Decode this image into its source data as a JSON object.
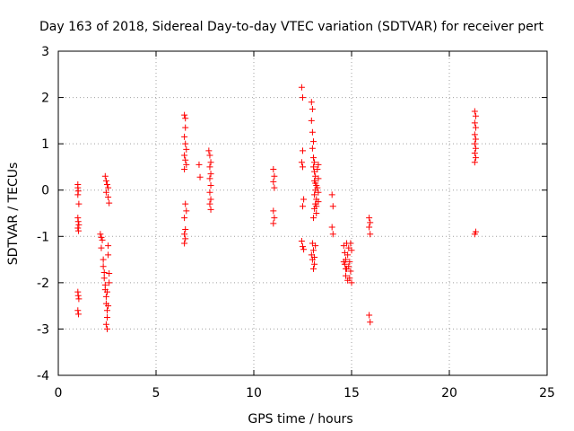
{
  "chart_data": {
    "type": "scatter",
    "title": "Day 163 of 2018, Sidereal Day-to-day VTEC variation (SDTVAR) for receiver pert",
    "xlabel": "GPS time / hours",
    "ylabel": "SDTVAR / TECUs",
    "xlim": [
      0,
      25
    ],
    "ylim": [
      -4,
      3
    ],
    "xticks": [
      0,
      5,
      10,
      15,
      20,
      25
    ],
    "yticks": [
      -4,
      -3,
      -2,
      -1,
      0,
      1,
      2,
      3
    ],
    "xtick_labels": [
      "0",
      "5",
      "10",
      "15",
      "20",
      "25"
    ],
    "ytick_labels": [
      "-4",
      "-3",
      "-2",
      "-1",
      "0",
      "1",
      "2",
      "3"
    ],
    "grid": true,
    "marker": "+",
    "color": "#ff0000",
    "series": [
      {
        "name": "SDTVAR",
        "points": [
          [
            1.0,
            0.12
          ],
          [
            1.0,
            0.05
          ],
          [
            1.02,
            -0.02
          ],
          [
            1.0,
            -0.1
          ],
          [
            1.05,
            -0.3
          ],
          [
            1.0,
            -0.6
          ],
          [
            1.02,
            -0.68
          ],
          [
            1.05,
            -0.75
          ],
          [
            1.0,
            -0.82
          ],
          [
            1.03,
            -0.88
          ],
          [
            1.0,
            -2.2
          ],
          [
            1.02,
            -2.28
          ],
          [
            1.05,
            -2.35
          ],
          [
            1.0,
            -2.6
          ],
          [
            1.03,
            -2.68
          ],
          [
            2.15,
            -0.95
          ],
          [
            2.2,
            -1.02
          ],
          [
            2.25,
            -1.08
          ],
          [
            2.2,
            -1.25
          ],
          [
            2.3,
            -1.5
          ],
          [
            2.3,
            -1.65
          ],
          [
            2.35,
            -1.78
          ],
          [
            2.35,
            -1.9
          ],
          [
            2.4,
            -2.05
          ],
          [
            2.4,
            -2.15
          ],
          [
            2.45,
            -2.3
          ],
          [
            2.45,
            -2.45
          ],
          [
            2.5,
            -2.6
          ],
          [
            2.5,
            -2.75
          ],
          [
            2.45,
            -2.9
          ],
          [
            2.5,
            -3.0
          ],
          [
            2.55,
            -1.4
          ],
          [
            2.55,
            -1.2
          ],
          [
            2.5,
            -2.2
          ],
          [
            2.55,
            -2.5
          ],
          [
            2.6,
            -1.8
          ],
          [
            2.6,
            -2.0
          ],
          [
            2.4,
            0.3
          ],
          [
            2.45,
            0.2
          ],
          [
            2.5,
            0.12
          ],
          [
            2.55,
            0.05
          ],
          [
            2.45,
            -0.05
          ],
          [
            2.55,
            -0.15
          ],
          [
            2.6,
            -0.28
          ],
          [
            6.45,
            1.62
          ],
          [
            6.5,
            1.55
          ],
          [
            6.5,
            1.35
          ],
          [
            6.45,
            1.15
          ],
          [
            6.5,
            1.0
          ],
          [
            6.55,
            0.88
          ],
          [
            6.45,
            0.75
          ],
          [
            6.5,
            0.65
          ],
          [
            6.55,
            0.55
          ],
          [
            6.45,
            0.45
          ],
          [
            6.5,
            -0.3
          ],
          [
            6.55,
            -0.45
          ],
          [
            6.45,
            -0.6
          ],
          [
            6.5,
            -0.85
          ],
          [
            6.45,
            -0.95
          ],
          [
            6.5,
            -1.05
          ],
          [
            6.45,
            -1.15
          ],
          [
            7.2,
            0.55
          ],
          [
            7.25,
            0.28
          ],
          [
            7.7,
            0.85
          ],
          [
            7.75,
            0.75
          ],
          [
            7.8,
            0.6
          ],
          [
            7.75,
            0.5
          ],
          [
            7.8,
            0.35
          ],
          [
            7.75,
            0.25
          ],
          [
            7.8,
            0.1
          ],
          [
            7.75,
            -0.05
          ],
          [
            7.8,
            -0.2
          ],
          [
            7.75,
            -0.3
          ],
          [
            7.8,
            -0.42
          ],
          [
            11.0,
            0.45
          ],
          [
            11.05,
            0.3
          ],
          [
            11.0,
            0.18
          ],
          [
            11.05,
            0.05
          ],
          [
            11.0,
            -0.45
          ],
          [
            11.05,
            -0.6
          ],
          [
            11.0,
            -0.72
          ],
          [
            12.45,
            2.22
          ],
          [
            12.5,
            2.0
          ],
          [
            12.5,
            0.85
          ],
          [
            12.45,
            0.6
          ],
          [
            12.5,
            0.5
          ],
          [
            12.55,
            -0.2
          ],
          [
            12.5,
            -0.35
          ],
          [
            12.45,
            -1.1
          ],
          [
            12.5,
            -1.22
          ],
          [
            12.55,
            -1.28
          ],
          [
            12.95,
            1.9
          ],
          [
            13.0,
            1.75
          ],
          [
            12.95,
            1.5
          ],
          [
            13.0,
            1.25
          ],
          [
            13.05,
            1.05
          ],
          [
            13.0,
            0.9
          ],
          [
            13.05,
            0.7
          ],
          [
            13.1,
            0.6
          ],
          [
            13.05,
            0.5
          ],
          [
            13.1,
            0.4
          ],
          [
            13.15,
            0.3
          ],
          [
            13.1,
            0.2
          ],
          [
            13.2,
            0.1
          ],
          [
            13.15,
            0.0
          ],
          [
            13.1,
            -0.1
          ],
          [
            13.2,
            -0.2
          ],
          [
            13.15,
            -0.3
          ],
          [
            13.1,
            -0.4
          ],
          [
            13.2,
            -0.5
          ],
          [
            13.05,
            -0.6
          ],
          [
            13.15,
            0.15
          ],
          [
            13.25,
            0.05
          ],
          [
            13.3,
            -0.05
          ],
          [
            13.3,
            0.25
          ],
          [
            13.25,
            0.45
          ],
          [
            13.3,
            0.55
          ],
          [
            13.2,
            -0.35
          ],
          [
            13.3,
            -0.25
          ],
          [
            13.0,
            -1.15
          ],
          [
            13.05,
            -1.3
          ],
          [
            12.95,
            -1.4
          ],
          [
            13.0,
            -1.5
          ],
          [
            13.1,
            -1.6
          ],
          [
            13.05,
            -1.7
          ],
          [
            13.15,
            -1.2
          ],
          [
            13.1,
            -1.45
          ],
          [
            14.0,
            -0.1
          ],
          [
            14.05,
            -0.35
          ],
          [
            14.0,
            -0.8
          ],
          [
            14.05,
            -0.95
          ],
          [
            14.6,
            -1.2
          ],
          [
            14.65,
            -1.35
          ],
          [
            14.7,
            -1.5
          ],
          [
            14.65,
            -1.6
          ],
          [
            14.75,
            -1.7
          ],
          [
            14.7,
            -1.85
          ],
          [
            14.8,
            -1.95
          ],
          [
            14.85,
            -1.25
          ],
          [
            14.8,
            -1.4
          ],
          [
            14.9,
            -1.55
          ],
          [
            14.85,
            -1.65
          ],
          [
            14.95,
            -1.75
          ],
          [
            14.9,
            -1.9
          ],
          [
            15.0,
            -2.0
          ],
          [
            14.95,
            -1.15
          ],
          [
            15.0,
            -1.3
          ],
          [
            14.75,
            -1.15
          ],
          [
            14.6,
            -1.55
          ],
          [
            14.7,
            -1.7
          ],
          [
            15.9,
            -0.6
          ],
          [
            15.95,
            -0.7
          ],
          [
            15.9,
            -0.8
          ],
          [
            15.95,
            -0.95
          ],
          [
            15.9,
            -2.7
          ],
          [
            15.95,
            -2.85
          ],
          [
            21.3,
            1.7
          ],
          [
            21.35,
            1.6
          ],
          [
            21.3,
            1.45
          ],
          [
            21.35,
            1.35
          ],
          [
            21.3,
            1.2
          ],
          [
            21.35,
            1.1
          ],
          [
            21.3,
            1.0
          ],
          [
            21.35,
            0.9
          ],
          [
            21.3,
            0.8
          ],
          [
            21.35,
            0.7
          ],
          [
            21.3,
            0.6
          ],
          [
            21.35,
            -0.9
          ],
          [
            21.3,
            -0.95
          ]
        ]
      }
    ]
  }
}
